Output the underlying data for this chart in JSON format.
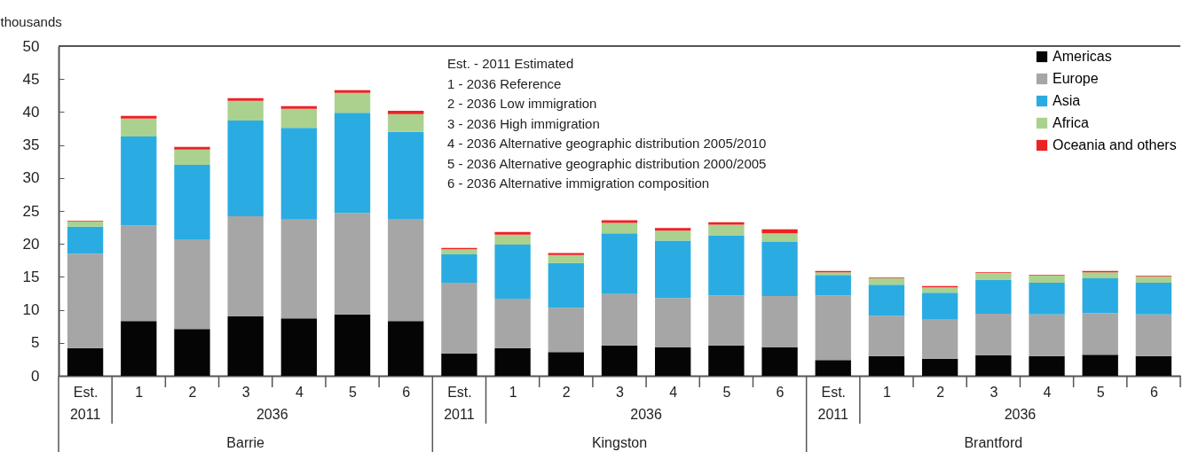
{
  "chart_data": {
    "type": "bar",
    "stacked": true,
    "ylabel": "thousands",
    "categories": [
      "Est.",
      "1",
      "2",
      "3",
      "4",
      "5",
      "6",
      "Est.",
      "1",
      "2",
      "3",
      "4",
      "5",
      "6",
      "Est.",
      "1",
      "2",
      "3",
      "4",
      "5",
      "6"
    ],
    "series": [
      {
        "name": "Americas",
        "color": "#050505",
        "values": [
          4.2,
          8.3,
          7.1,
          9.0,
          8.7,
          9.3,
          8.3,
          3.4,
          4.2,
          3.6,
          4.6,
          4.3,
          4.6,
          4.3,
          2.4,
          3.0,
          2.6,
          3.1,
          3.0,
          3.2,
          3.0
        ]
      },
      {
        "name": "Europe",
        "color": "#a6a6a6",
        "values": [
          14.3,
          14.5,
          13.6,
          15.2,
          15.0,
          15.4,
          15.5,
          10.7,
          7.5,
          6.7,
          7.8,
          7.5,
          7.6,
          7.8,
          9.8,
          6.1,
          6.0,
          6.3,
          6.3,
          6.3,
          6.3
        ]
      },
      {
        "name": "Asia",
        "color": "#2aace2",
        "values": [
          4.1,
          13.5,
          11.3,
          14.5,
          13.9,
          15.2,
          13.2,
          4.3,
          8.2,
          6.8,
          9.2,
          8.7,
          9.1,
          8.2,
          3.1,
          4.7,
          4.0,
          5.2,
          4.8,
          5.3,
          4.8
        ]
      },
      {
        "name": "Africa",
        "color": "#abd18e",
        "values": [
          0.8,
          2.7,
          2.3,
          3.0,
          2.9,
          3.0,
          2.7,
          0.8,
          1.5,
          1.2,
          1.6,
          1.5,
          1.6,
          1.3,
          0.4,
          1.0,
          0.8,
          1.0,
          1.1,
          0.9,
          1.0
        ]
      },
      {
        "name": "Oceania and others",
        "color": "#ee2124",
        "values": [
          0.1,
          0.4,
          0.4,
          0.4,
          0.4,
          0.4,
          0.5,
          0.2,
          0.4,
          0.3,
          0.4,
          0.4,
          0.4,
          0.6,
          0.2,
          0.1,
          0.2,
          0.1,
          0.1,
          0.2,
          0.1
        ]
      }
    ],
    "ylim": [
      0,
      50
    ],
    "yticks": [
      0,
      5,
      10,
      15,
      20,
      25,
      30,
      35,
      40,
      45,
      50
    ],
    "grid": false,
    "legend": "top right",
    "annotations": [
      "Est. - 2011 Estimated",
      "1  -  2036 Reference",
      "2  -  2036 Low immigration",
      "3  -  2036 High immigration",
      "4  -  2036 Alternative geographic distribution 2005/2010",
      "5  -  2036 Alternative geographic distribution 2000/2005",
      "6  -  2036 Alternative immigration composition",
      "2011",
      "2036",
      "Barrie",
      "2011",
      "2036",
      "Kingston",
      "2011",
      "2036",
      "Brantford"
    ]
  }
}
